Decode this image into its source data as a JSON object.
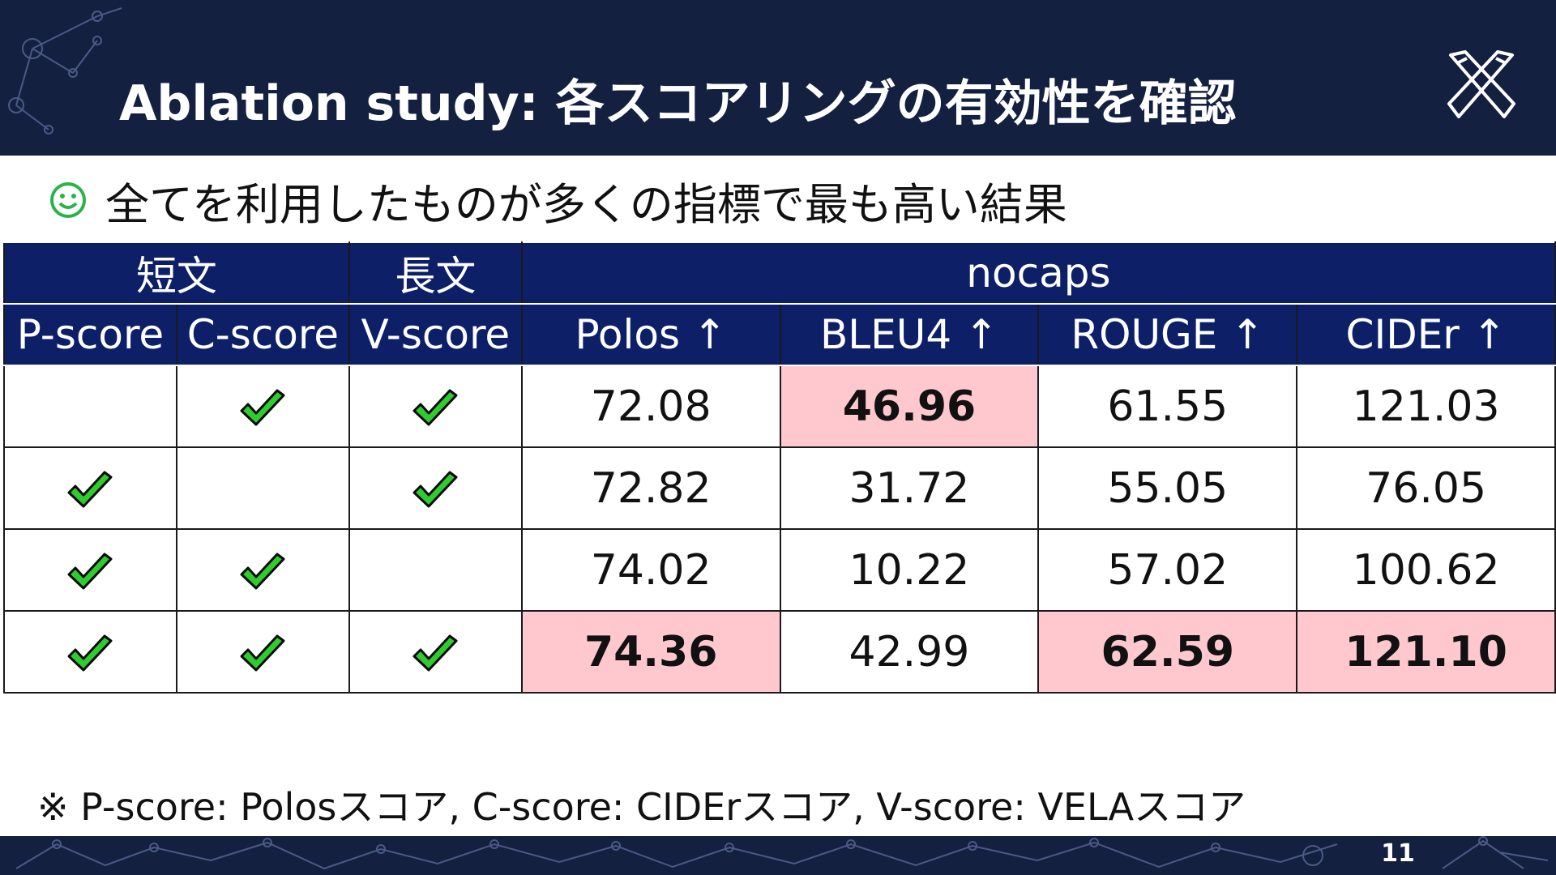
{
  "slide": {
    "title": "Ablation study: 各スコアリングの有効性を確認",
    "bullet": "全てを利用したものが多くの指標で最も高い結果",
    "bullet_icon": "smiley-icon",
    "footnote": "※ P-score: Polosスコア, C-score: CIDErスコア, V-score: VELAスコア",
    "page_number": "11",
    "colors": {
      "header_bg": "#14203f",
      "table_header_bg": "#0d1f66",
      "highlight": "#ffc7ce",
      "check": "#2ecc2e"
    }
  },
  "table": {
    "group_headers": {
      "short": "短文",
      "long": "長文",
      "dataset": "nocaps"
    },
    "columns": [
      "P-score",
      "C-score",
      "V-score",
      "Polos ↑",
      "BLEU4 ↑",
      "ROUGE ↑",
      "CIDEr ↑"
    ],
    "rows": [
      {
        "checks": [
          false,
          true,
          true
        ],
        "values": [
          "72.08",
          "46.96",
          "61.55",
          "121.03"
        ],
        "best": [
          false,
          true,
          false,
          false
        ]
      },
      {
        "checks": [
          true,
          false,
          true
        ],
        "values": [
          "72.82",
          "31.72",
          "55.05",
          "76.05"
        ],
        "best": [
          false,
          false,
          false,
          false
        ]
      },
      {
        "checks": [
          true,
          true,
          false
        ],
        "values": [
          "74.02",
          "10.22",
          "57.02",
          "100.62"
        ],
        "best": [
          false,
          false,
          false,
          false
        ]
      },
      {
        "checks": [
          true,
          true,
          true
        ],
        "values": [
          "74.36",
          "42.99",
          "62.59",
          "121.10"
        ],
        "best": [
          true,
          false,
          true,
          true
        ]
      }
    ]
  }
}
